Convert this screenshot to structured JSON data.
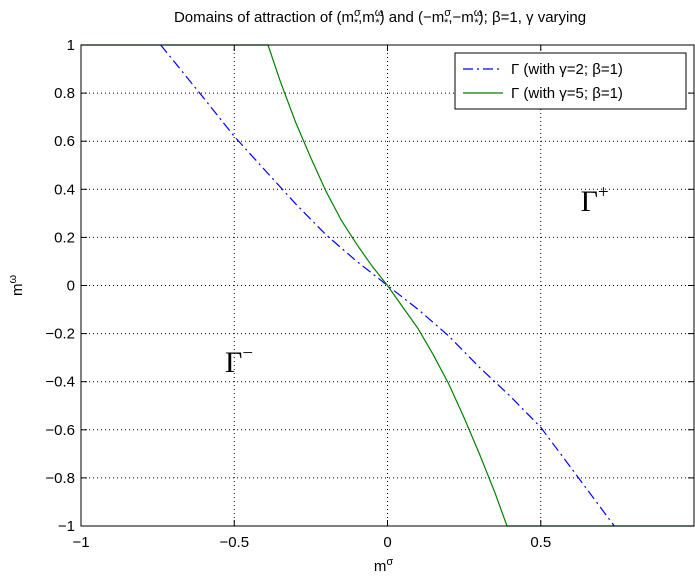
{
  "chart_data": {
    "type": "line",
    "title": "Domains of attraction of (mσ*,mω*) and (−mσ*,−mω*); β=1, γ varying",
    "title_parts": {
      "pre": "Domains of attraction of (m",
      "sig1": "σ",
      "star1": "*",
      "comma1": ",m",
      "om1": "ω",
      "star2": "*",
      "mid": ") and (−m",
      "sig2": "σ",
      "star3": "*",
      "comma2": ",−m",
      "om2": "ω",
      "star4": "*",
      "post": "); β=1, γ varying"
    },
    "xlabel": "mσ",
    "xlabel_parts": {
      "base": "m",
      "sup": "σ"
    },
    "ylabel": "mω",
    "ylabel_parts": {
      "base": "m",
      "sup": "ω"
    },
    "xlim": [
      -1,
      1
    ],
    "ylim": [
      -1,
      1
    ],
    "x_ticks": [
      -1,
      -0.5,
      0,
      0.5
    ],
    "x_tick_labels": [
      "−1",
      "−0.5",
      "0",
      "0.5"
    ],
    "y_ticks": [
      -1,
      -0.8,
      -0.6,
      -0.4,
      -0.2,
      0,
      0.2,
      0.4,
      0.6,
      0.8,
      1
    ],
    "y_tick_labels": [
      "−1",
      "−0.8",
      "−0.6",
      "−0.4",
      "−0.2",
      "0",
      "0.2",
      "0.4",
      "0.6",
      "0.8",
      "1"
    ],
    "grid": true,
    "legend_position": "top-right",
    "series": [
      {
        "name": "Γ (with γ=2; β=1)",
        "legend": {
          "pre": "Γ (with γ=2; β=1)"
        },
        "color": "#0000ff",
        "style": "dash-dot",
        "x": [
          -0.74,
          -0.6,
          -0.5,
          -0.4,
          -0.3,
          -0.2,
          -0.1,
          0,
          0.1,
          0.2,
          0.3,
          0.4,
          0.5,
          0.6,
          0.74
        ],
        "y": [
          1,
          0.78,
          0.62,
          0.48,
          0.34,
          0.21,
          0.1,
          0,
          -0.1,
          -0.21,
          -0.34,
          -0.46,
          -0.59,
          -0.76,
          -1
        ]
      },
      {
        "name": "Γ (with γ=5; β=1)",
        "legend": {
          "pre": "Γ (with γ=5; β=1)"
        },
        "color": "#008000",
        "style": "solid",
        "x": [
          -1,
          -0.39,
          -0.35,
          -0.3,
          -0.25,
          -0.2,
          -0.15,
          -0.1,
          -0.05,
          0,
          0.05,
          0.1,
          0.15,
          0.2,
          0.25,
          0.3,
          0.35,
          0.39,
          1
        ],
        "y": [
          1,
          1,
          0.85,
          0.68,
          0.53,
          0.39,
          0.27,
          0.17,
          0.08,
          0,
          -0.09,
          -0.18,
          -0.29,
          -0.41,
          -0.55,
          -0.7,
          -0.86,
          -1,
          -1
        ]
      }
    ],
    "annotations": [
      {
        "base": "Γ",
        "sup": "+",
        "x": 0.63,
        "y": 0.31
      },
      {
        "base": "Γ",
        "sup": "−",
        "x": -0.53,
        "y": -0.36
      }
    ]
  }
}
